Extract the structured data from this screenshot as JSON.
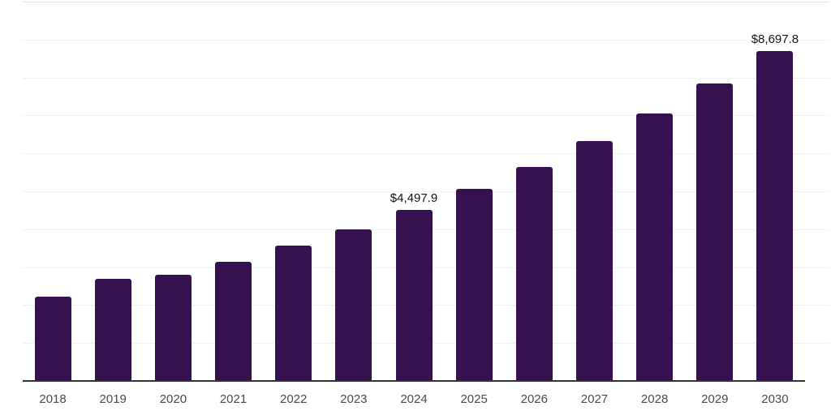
{
  "chart": {
    "background": "#ffffff",
    "bar_color": "#361150",
    "gridline_color": "#f2f2f2",
    "top_gridline_color": "#e4e4e4",
    "axis_line_color": "#333333",
    "tick_label_color": "#4a4a4a",
    "value_label_color": "#141414"
  },
  "chart_data": {
    "type": "bar",
    "title": "",
    "xlabel": "",
    "ylabel": "",
    "categories": [
      "2018",
      "2019",
      "2020",
      "2021",
      "2022",
      "2023",
      "2024",
      "2025",
      "2026",
      "2027",
      "2028",
      "2029",
      "2030"
    ],
    "values": [
      2220,
      2690,
      2800,
      3150,
      3570,
      4000,
      4497.9,
      5060,
      5650,
      6320,
      7050,
      7850,
      8697.8
    ],
    "data_labels": [
      "",
      "",
      "",
      "",
      "",
      "",
      "$4,497.9",
      "",
      "",
      "",
      "",
      "",
      "$8,697.8"
    ],
    "ylim": [
      0,
      10000
    ],
    "gridline_step": 1000,
    "grid": "horizontal",
    "legend": "none"
  }
}
